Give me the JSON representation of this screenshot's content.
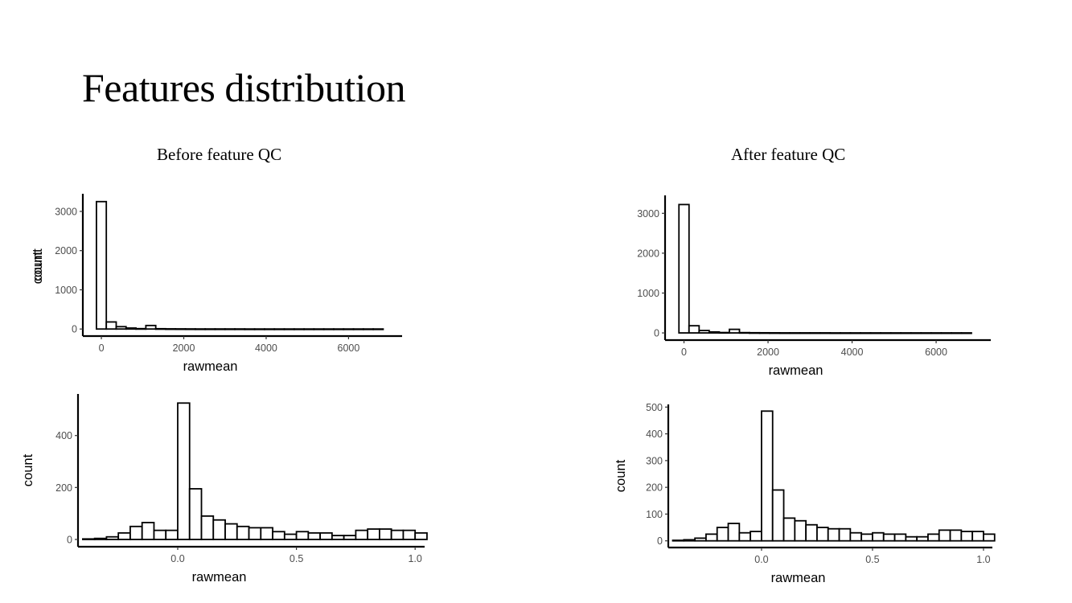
{
  "slide": {
    "title": "Features distribution",
    "left_heading": "Before feature QC",
    "right_heading": "After feature QC"
  },
  "chart_data": [
    {
      "type": "histogram",
      "title": "Before feature QC",
      "xlabel": "rawmean",
      "ylabel": "count",
      "xlim": [
        -450,
        7300
      ],
      "ylim": [
        -180,
        3450
      ],
      "xticks": [
        0,
        2000,
        4000,
        6000
      ],
      "yticks": [
        0,
        1000,
        2000,
        3000
      ],
      "bin_width": 240,
      "bin_start": -120,
      "values": [
        3250,
        180,
        60,
        25,
        10,
        90,
        8,
        5,
        4,
        3,
        2,
        2,
        2,
        2,
        2,
        1,
        1,
        1,
        1,
        1,
        1,
        1,
        1,
        1,
        1,
        1,
        1,
        1,
        1
      ],
      "colors": {
        "fill": "#ffffff",
        "stroke": "#000000"
      }
    },
    {
      "type": "histogram",
      "title": "Before feature QC",
      "xlabel": "rawmean",
      "ylabel": "count",
      "xlim": [
        -0.42,
        1.04
      ],
      "ylim": [
        -28,
        560
      ],
      "xticks": [
        0.0,
        0.5,
        1.0
      ],
      "xtick_labels": [
        "0.0",
        "0.5",
        "1.0"
      ],
      "yticks": [
        0,
        200,
        400
      ],
      "bin_width": 0.05,
      "bin_start": -0.4,
      "values": [
        2,
        4,
        10,
        25,
        50,
        65,
        35,
        35,
        525,
        195,
        90,
        75,
        60,
        50,
        45,
        45,
        30,
        20,
        30,
        25,
        25,
        15,
        15,
        35,
        40,
        40,
        35,
        35,
        25
      ],
      "colors": {
        "fill": "#ffffff",
        "stroke": "#000000"
      }
    },
    {
      "type": "histogram",
      "title": "After feature QC",
      "xlabel": "rawmean",
      "ylabel": "count",
      "xlim": [
        -450,
        7300
      ],
      "ylim": [
        -180,
        3450
      ],
      "xticks": [
        0,
        2000,
        4000,
        6000
      ],
      "yticks": [
        0,
        1000,
        2000,
        3000
      ],
      "bin_width": 240,
      "bin_start": -120,
      "values": [
        3220,
        180,
        60,
        25,
        10,
        90,
        8,
        5,
        4,
        3,
        2,
        2,
        2,
        2,
        2,
        1,
        1,
        1,
        1,
        1,
        1,
        1,
        1,
        1,
        1,
        1,
        1,
        1,
        1
      ],
      "colors": {
        "fill": "#ffffff",
        "stroke": "#000000"
      }
    },
    {
      "type": "histogram",
      "title": "After feature QC",
      "xlabel": "rawmean",
      "ylabel": "count",
      "xlim": [
        -0.42,
        1.04
      ],
      "ylim": [
        -25,
        510
      ],
      "xticks": [
        0.0,
        0.5,
        1.0
      ],
      "xtick_labels": [
        "0.0",
        "0.5",
        "1.0"
      ],
      "yticks": [
        0,
        100,
        200,
        300,
        400,
        500
      ],
      "bin_width": 0.05,
      "bin_start": -0.4,
      "values": [
        2,
        4,
        10,
        25,
        50,
        65,
        30,
        35,
        485,
        190,
        85,
        75,
        60,
        50,
        45,
        45,
        30,
        25,
        30,
        25,
        25,
        15,
        15,
        25,
        40,
        40,
        35,
        35,
        25
      ],
      "colors": {
        "fill": "#ffffff",
        "stroke": "#000000"
      }
    }
  ]
}
